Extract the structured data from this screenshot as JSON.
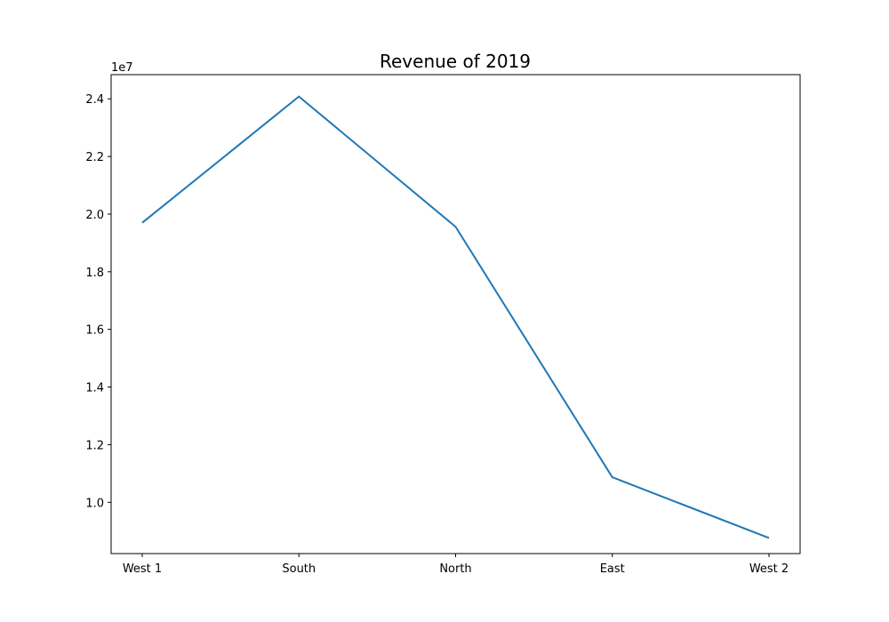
{
  "chart_data": {
    "type": "line",
    "title": "Revenue of 2019",
    "xlabel": "",
    "ylabel": "",
    "categories": [
      "West 1",
      "South",
      "North",
      "East",
      "West 2"
    ],
    "series": [
      {
        "values": [
          19700000,
          24080000,
          19560000,
          10870000,
          8760000
        ],
        "color": "#1f77b4"
      }
    ],
    "ylim": [
      8220000,
      24840000
    ],
    "y_ticks": [
      10000000,
      12000000,
      14000000,
      16000000,
      18000000,
      20000000,
      22000000,
      24000000
    ],
    "y_tick_labels": [
      "1.0",
      "1.2",
      "1.4",
      "1.6",
      "1.8",
      "2.0",
      "2.2",
      "2.4"
    ],
    "y_offset_label": "1e7",
    "grid": false,
    "legend": "none"
  }
}
